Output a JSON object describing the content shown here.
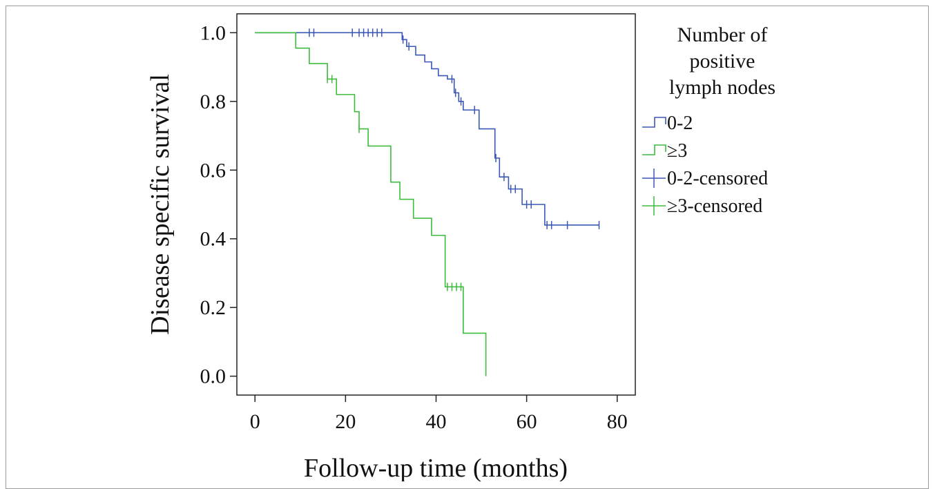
{
  "chart_data": {
    "type": "line",
    "subtype": "kaplan-meier step survival curves",
    "title": "",
    "xlabel": "Follow-up time (months)",
    "ylabel": "Disease specific survival",
    "xlim": [
      -4,
      84
    ],
    "ylim": [
      -0.055,
      1.055
    ],
    "x_ticks": [
      0,
      20,
      40,
      60,
      80
    ],
    "x_tick_labels": [
      "0",
      "20",
      "40",
      "60",
      "80"
    ],
    "y_ticks": [
      0.0,
      0.2,
      0.4,
      0.6,
      0.8,
      1.0
    ],
    "y_tick_labels": [
      "0.0",
      "0.2",
      "0.4",
      "0.6",
      "0.8",
      "1.0"
    ],
    "grid": false,
    "legend": {
      "title_lines": [
        "Number of",
        "positive",
        "lymph nodes"
      ],
      "placement": "right",
      "entries": [
        {
          "label": "0-2",
          "kind": "step",
          "color": "#3a57b5"
        },
        {
          "label": "≥3",
          "kind": "step",
          "color": "#3dbb3d"
        },
        {
          "label": "0-2-censored",
          "kind": "censor",
          "color": "#3a57b5"
        },
        {
          "label": "≥3-censored",
          "kind": "censor",
          "color": "#3dbb3d"
        }
      ]
    },
    "series": [
      {
        "name": "0-2",
        "color": "#3a57b5",
        "steps": [
          [
            0,
            1.0
          ],
          [
            32.5,
            0.98
          ],
          [
            33.5,
            0.96
          ],
          [
            35.5,
            0.935
          ],
          [
            37.5,
            0.915
          ],
          [
            39.0,
            0.895
          ],
          [
            40.5,
            0.875
          ],
          [
            42.5,
            0.865
          ],
          [
            44.0,
            0.825
          ],
          [
            45.0,
            0.8
          ],
          [
            46.0,
            0.775
          ],
          [
            49.5,
            0.72
          ],
          [
            53.0,
            0.635
          ],
          [
            54.0,
            0.58
          ],
          [
            56.0,
            0.545
          ],
          [
            59.0,
            0.5
          ],
          [
            64.0,
            0.44
          ],
          [
            76.0,
            0.44
          ]
        ],
        "censored": [
          [
            12,
            1.0
          ],
          [
            13,
            1.0
          ],
          [
            21.5,
            1.0
          ],
          [
            23,
            1.0
          ],
          [
            24,
            1.0
          ],
          [
            25,
            1.0
          ],
          [
            26,
            1.0
          ],
          [
            27,
            1.0
          ],
          [
            28,
            1.0
          ],
          [
            32.7,
            0.98
          ],
          [
            34,
            0.96
          ],
          [
            43.5,
            0.865
          ],
          [
            44.3,
            0.825
          ],
          [
            45.5,
            0.8
          ],
          [
            48.5,
            0.775
          ],
          [
            53.2,
            0.635
          ],
          [
            55,
            0.58
          ],
          [
            56.5,
            0.545
          ],
          [
            57.5,
            0.545
          ],
          [
            60,
            0.5
          ],
          [
            61,
            0.5
          ],
          [
            64.5,
            0.44
          ],
          [
            65.5,
            0.44
          ],
          [
            69,
            0.44
          ],
          [
            76,
            0.44
          ]
        ]
      },
      {
        "name": "≥3",
        "color": "#3dbb3d",
        "steps": [
          [
            0,
            1.0
          ],
          [
            9,
            0.955
          ],
          [
            12,
            0.91
          ],
          [
            16,
            0.865
          ],
          [
            18,
            0.82
          ],
          [
            22,
            0.77
          ],
          [
            23,
            0.72
          ],
          [
            25,
            0.67
          ],
          [
            30,
            0.565
          ],
          [
            32,
            0.515
          ],
          [
            35,
            0.46
          ],
          [
            39,
            0.41
          ],
          [
            42,
            0.26
          ],
          [
            46,
            0.125
          ],
          [
            51,
            0.0
          ]
        ],
        "censored": [
          [
            16,
            0.865
          ],
          [
            17,
            0.865
          ],
          [
            23,
            0.72
          ],
          [
            42.5,
            0.26
          ],
          [
            43.5,
            0.26
          ],
          [
            44.5,
            0.26
          ],
          [
            45.5,
            0.26
          ]
        ]
      }
    ]
  }
}
